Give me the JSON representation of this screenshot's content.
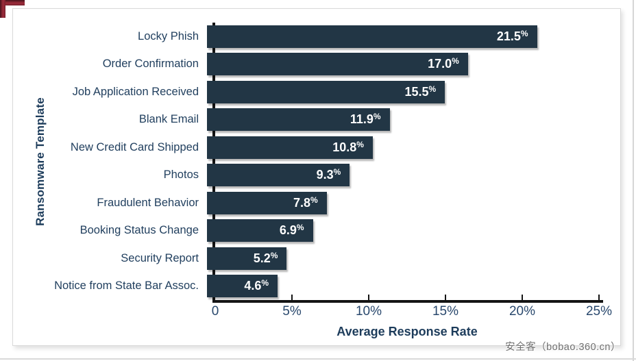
{
  "watermark": "安全客（bobao.360.cn）",
  "colors": {
    "bar": "#223645",
    "axis_line": "#141414",
    "category_label": "#22405f",
    "tick_label": "#29486d",
    "axis_title": "#1d3c5b",
    "bracket_red": "#9e2c3b",
    "card_border": "#d9d9d9"
  },
  "chart_data": {
    "type": "bar",
    "orientation": "horizontal",
    "title": "",
    "categories": [
      "Locky Phish",
      "Order Confirmation",
      "Job Application Received",
      "Blank Email",
      "New Credit Card Shipped",
      "Photos",
      "Fraudulent Behavior",
      "Booking Status Change",
      "Security Report",
      "Notice from State Bar Assoc."
    ],
    "values": [
      21.5,
      17.0,
      15.5,
      11.9,
      10.8,
      9.3,
      7.8,
      6.9,
      5.2,
      4.6
    ],
    "value_labels": [
      "21.5%",
      "17.0%",
      "15.5%",
      "11.9%",
      "10.8%",
      "9.3%",
      "7.8%",
      "6.9%",
      "5.2%",
      "4.6%"
    ],
    "xlabel": "Average Response Rate",
    "ylabel": "Ransomware Template",
    "xlim": [
      0,
      25
    ],
    "xticks": [
      {
        "v": 0,
        "label": "0"
      },
      {
        "v": 5,
        "label": "5%"
      },
      {
        "v": 10,
        "label": "10%"
      },
      {
        "v": 15,
        "label": "15%"
      },
      {
        "v": 20,
        "label": "20%"
      },
      {
        "v": 25,
        "label": "25%"
      }
    ],
    "grid": false,
    "legend": "none",
    "value_label_position": "inside-end"
  }
}
